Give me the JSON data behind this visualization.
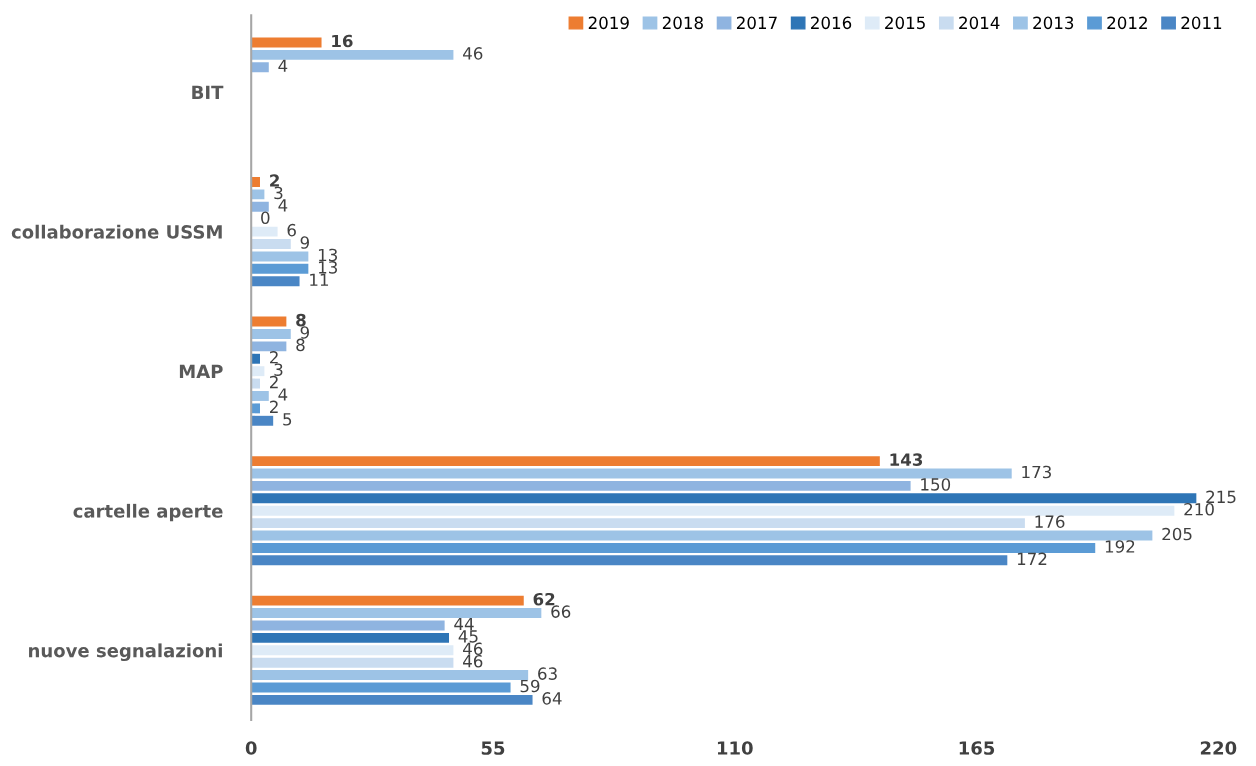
{
  "chart_data": {
    "type": "bar",
    "orientation": "horizontal",
    "categories": [
      "BIT",
      "collaborazione USSM",
      "MAP",
      "cartelle aperte",
      "nuove segnalazioni"
    ],
    "series": [
      {
        "name": "2019",
        "color": "#ed7d31",
        "values": [
          16,
          2,
          8,
          143,
          62
        ]
      },
      {
        "name": "2018",
        "color": "#9dc3e6",
        "values": [
          46,
          3,
          9,
          173,
          66
        ]
      },
      {
        "name": "2017",
        "color": "#8fb4e0",
        "values": [
          4,
          4,
          8,
          150,
          44
        ]
      },
      {
        "name": "2016",
        "color": "#2e75b6",
        "values": [
          null,
          0,
          2,
          215,
          45
        ]
      },
      {
        "name": "2015",
        "color": "#deebf7",
        "values": [
          null,
          6,
          3,
          210,
          46
        ]
      },
      {
        "name": "2014",
        "color": "#c9dcf0",
        "values": [
          null,
          9,
          2,
          176,
          46
        ]
      },
      {
        "name": "2013",
        "color": "#9dc3e6",
        "values": [
          null,
          13,
          4,
          205,
          63
        ]
      },
      {
        "name": "2012",
        "color": "#5b9bd5",
        "values": [
          null,
          13,
          2,
          192,
          59
        ]
      },
      {
        "name": "2011",
        "color": "#4a86c5",
        "values": [
          null,
          11,
          5,
          172,
          64
        ]
      }
    ],
    "xlim": [
      0,
      220
    ],
    "xticks": [
      0,
      55,
      110,
      165,
      220
    ],
    "data_labels": true,
    "legend": "top right",
    "grid": false
  }
}
